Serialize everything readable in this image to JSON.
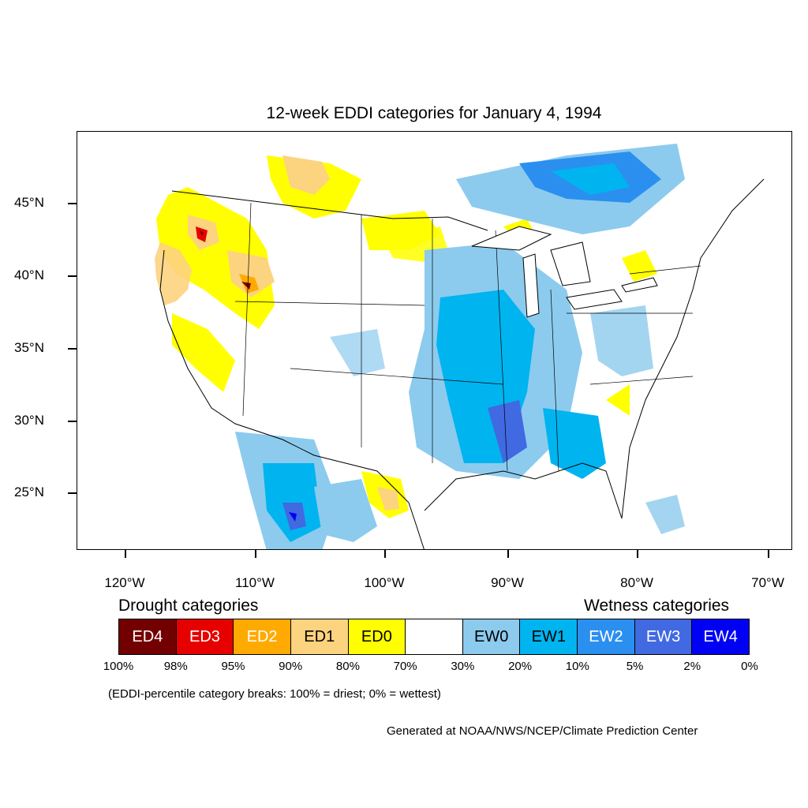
{
  "title": "12-week EDDI categories for January 4, 1994",
  "lat_labels": [
    "45°N",
    "40°N",
    "35°N",
    "30°N",
    "25°N"
  ],
  "lon_labels": [
    "120°W",
    "110°W",
    "100°W",
    "90°W",
    "80°W",
    "70°W"
  ],
  "legend": {
    "drought_heading": "Drought categories",
    "wetness_heading": "Wetness categories",
    "categories": [
      {
        "label": "ED4",
        "color": "#730000",
        "text_color": "#ffffff"
      },
      {
        "label": "ED3",
        "color": "#e60000",
        "text_color": "#ffffff"
      },
      {
        "label": "ED2",
        "color": "#ffaa00",
        "text_color": "#ffffff"
      },
      {
        "label": "ED1",
        "color": "#fcd37f",
        "text_color": "#000000"
      },
      {
        "label": "ED0",
        "color": "#ffff00",
        "text_color": "#000000"
      },
      {
        "label": "",
        "color": "#ffffff",
        "text_color": "#000000"
      },
      {
        "label": "EW0",
        "color": "#8ccbee",
        "text_color": "#000000"
      },
      {
        "label": "EW1",
        "color": "#00b4f0",
        "text_color": "#000000"
      },
      {
        "label": "EW2",
        "color": "#2b8ff0",
        "text_color": "#ffffff"
      },
      {
        "label": "EW3",
        "color": "#4169e1",
        "text_color": "#ffffff"
      },
      {
        "label": "EW4",
        "color": "#0000f5",
        "text_color": "#ffffff"
      }
    ],
    "percentiles": [
      "100%",
      "98%",
      "95%",
      "90%",
      "80%",
      "70%",
      "30%",
      "20%",
      "10%",
      "5%",
      "2%",
      "0%"
    ]
  },
  "note": "(EDDI-percentile category breaks: 100% = driest; 0% = wettest)",
  "credit": "Generated at NOAA/NWS/NCEP/Climate Prediction Center"
}
